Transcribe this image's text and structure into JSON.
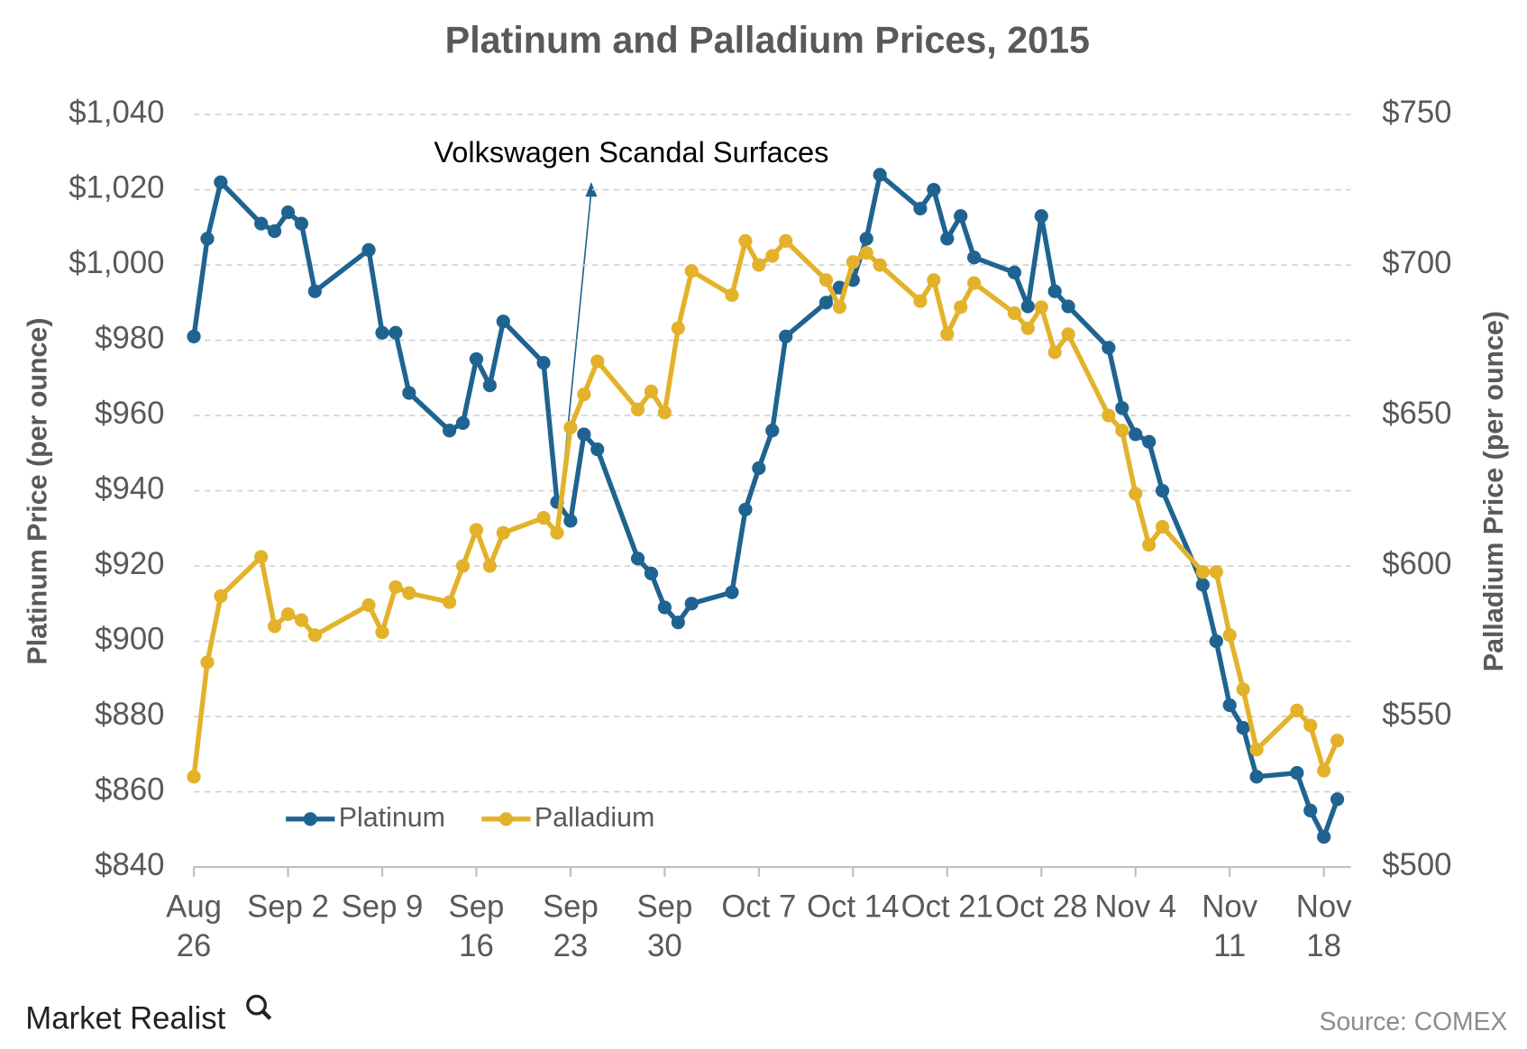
{
  "chart_data": {
    "type": "line",
    "title": "Platinum and Palladium Prices, 2015",
    "y_label": "Platinum Price (per ounce)",
    "y2_label": "Palladium Price (per ounce)",
    "annotation": "Volkswagen Scandal Surfaces",
    "source": "Source: COMEX",
    "brand": "Market Realist",
    "x": [
      "Aug 26",
      "Aug 27",
      "Aug 28",
      "Aug 31",
      "Sep 1",
      "Sep 2",
      "Sep 3",
      "Sep 4",
      "Sep 8",
      "Sep 9",
      "Sep 10",
      "Sep 11",
      "Sep 14",
      "Sep 15",
      "Sep 16",
      "Sep 17",
      "Sep 18",
      "Sep 21",
      "Sep 22",
      "Sep 23",
      "Sep 24",
      "Sep 25",
      "Sep 28",
      "Sep 29",
      "Sep 30",
      "Oct 1",
      "Oct 2",
      "Oct 5",
      "Oct 6",
      "Oct 7",
      "Oct 8",
      "Oct 9",
      "Oct 12",
      "Oct 13",
      "Oct 14",
      "Oct 15",
      "Oct 16",
      "Oct 19",
      "Oct 20",
      "Oct 21",
      "Oct 22",
      "Oct 23",
      "Oct 26",
      "Oct 27",
      "Oct 28",
      "Oct 29",
      "Oct 30",
      "Nov 2",
      "Nov 3",
      "Nov 4",
      "Nov 5",
      "Nov 6",
      "Nov 9",
      "Nov 10",
      "Nov 11",
      "Nov 12",
      "Nov 13",
      "Nov 16",
      "Nov 17",
      "Nov 18",
      "Nov 19"
    ],
    "xlim": [
      "Aug 26",
      "Nov 20"
    ],
    "xticks": [
      "Aug 26",
      "Sep 2",
      "Sep 9",
      "Sep 16",
      "Sep 23",
      "Sep 30",
      "Oct 7",
      "Oct 14",
      "Oct 21",
      "Oct 28",
      "Nov 4",
      "Nov 11",
      "Nov 18"
    ],
    "series": [
      {
        "name": "Platinum",
        "color": "#1f6391",
        "axis": "y",
        "values": [
          981,
          1007,
          1022,
          1011,
          1009,
          1014,
          1011,
          993,
          1004,
          982,
          982,
          966,
          956,
          958,
          975,
          968,
          985,
          974,
          937,
          932,
          955,
          951,
          922,
          918,
          909,
          905,
          910,
          913,
          935,
          946,
          956,
          981,
          990,
          994,
          996,
          1007,
          1024,
          1015,
          1020,
          1007,
          1013,
          1002,
          998,
          989,
          1013,
          993,
          989,
          978,
          962,
          955,
          953,
          940,
          915,
          900,
          883,
          877,
          864,
          865,
          855,
          848,
          858
        ]
      },
      {
        "name": "Palladium",
        "color": "#e3b22a",
        "axis": "y2",
        "values": [
          530,
          568,
          590,
          603,
          580,
          584,
          582,
          577,
          587,
          578,
          593,
          591,
          588,
          600,
          612,
          600,
          611,
          616,
          611,
          646,
          657,
          668,
          652,
          658,
          651,
          679,
          698,
          690,
          708,
          700,
          703,
          708,
          695,
          686,
          701,
          704,
          700,
          688,
          695,
          677,
          686,
          694,
          684,
          679,
          686,
          671,
          677,
          650,
          645,
          624,
          607,
          613,
          598,
          598,
          577,
          559,
          539,
          552,
          547,
          532,
          542
        ]
      }
    ],
    "ylim": [
      840,
      1040
    ],
    "yticks": [
      {
        "value": 840,
        "label": "$840"
      },
      {
        "value": 860,
        "label": "$860"
      },
      {
        "value": 880,
        "label": "$880"
      },
      {
        "value": 900,
        "label": "$900"
      },
      {
        "value": 920,
        "label": "$920"
      },
      {
        "value": 940,
        "label": "$940"
      },
      {
        "value": 960,
        "label": "$960"
      },
      {
        "value": 980,
        "label": "$980"
      },
      {
        "value": 1000,
        "label": "$1,000"
      },
      {
        "value": 1020,
        "label": "$1,020"
      },
      {
        "value": 1040,
        "label": "$1,040"
      }
    ],
    "y2lim": [
      500,
      750
    ],
    "y2ticks": [
      {
        "value": 500,
        "label": "$500"
      },
      {
        "value": 550,
        "label": "$550"
      },
      {
        "value": 600,
        "label": "$600"
      },
      {
        "value": 650,
        "label": "$650"
      },
      {
        "value": 700,
        "label": "$700"
      },
      {
        "value": 750,
        "label": "$750"
      }
    ],
    "grid": true,
    "legend": "lower left"
  }
}
